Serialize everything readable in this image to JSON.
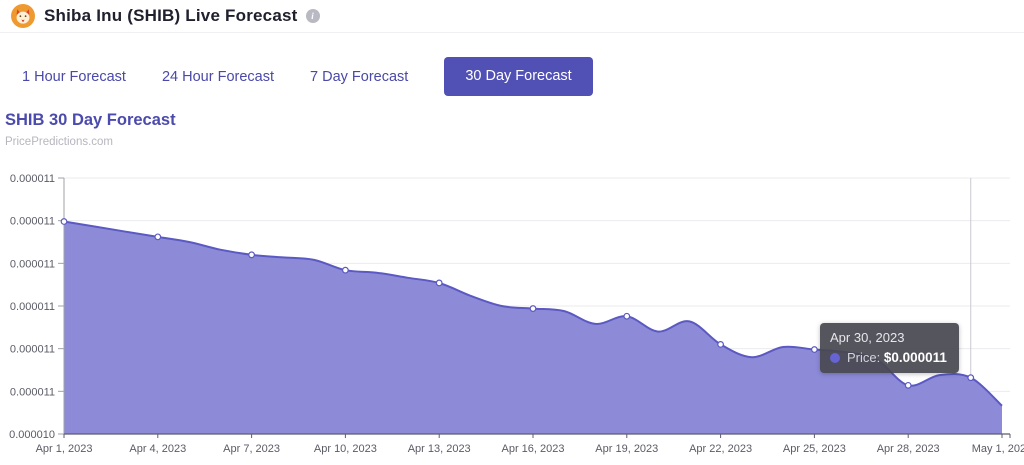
{
  "header": {
    "title": "Shiba Inu (SHIB) Live Forecast",
    "logo_name": "shiba-inu-logo",
    "info_icon": "i"
  },
  "tabs": [
    {
      "label": "1 Hour Forecast",
      "active": false
    },
    {
      "label": "24 Hour Forecast",
      "active": false
    },
    {
      "label": "7 Day Forecast",
      "active": false
    },
    {
      "label": "30 Day Forecast",
      "active": true
    }
  ],
  "section": {
    "heading": "SHIB 30 Day Forecast",
    "watermark": "PricePredictions.com"
  },
  "tooltip": {
    "date": "Apr 30, 2023",
    "price_label": "Price:",
    "price_value": "$0.000011"
  },
  "colors": {
    "accent": "#5150b4",
    "heading": "#4b4aad",
    "area_fill": "#8d8bd8",
    "area_stroke": "#5b59c2",
    "marker_fill": "#ffffff",
    "gridline": "#ebebee",
    "crosshair": "#c9c9d2",
    "y_axis": "#a0a0aa",
    "x_axis": "#5c5c72",
    "axis_text": "#5b5b66",
    "tooltip_bg": "#484852",
    "tooltip_dot": "#6663d2"
  },
  "chart_data": {
    "type": "area",
    "title": "SHIB 30 Day Forecast",
    "xlabel": "",
    "ylabel": "",
    "grid": true,
    "legend_position": "none",
    "ylim": [
      1.04e-05,
      1.14e-05
    ],
    "x": [
      "Apr 1, 2023",
      "Apr 2, 2023",
      "Apr 3, 2023",
      "Apr 4, 2023",
      "Apr 5, 2023",
      "Apr 6, 2023",
      "Apr 7, 2023",
      "Apr 8, 2023",
      "Apr 9, 2023",
      "Apr 10, 2023",
      "Apr 11, 2023",
      "Apr 12, 2023",
      "Apr 13, 2023",
      "Apr 14, 2023",
      "Apr 15, 2023",
      "Apr 16, 2023",
      "Apr 17, 2023",
      "Apr 18, 2023",
      "Apr 19, 2023",
      "Apr 20, 2023",
      "Apr 21, 2023",
      "Apr 22, 2023",
      "Apr 23, 2023",
      "Apr 24, 2023",
      "Apr 25, 2023",
      "Apr 26, 2023",
      "Apr 27, 2023",
      "Apr 28, 2023",
      "Apr 29, 2023",
      "Apr 30, 2023",
      "May 1, 2023"
    ],
    "values": [
      1.123e-05,
      1.121e-05,
      1.119e-05,
      1.117e-05,
      1.115e-05,
      1.112e-05,
      1.11e-05,
      1.109e-05,
      1.108e-05,
      1.104e-05,
      1.103e-05,
      1.101e-05,
      1.099e-05,
      1.094e-05,
      1.09e-05,
      1.089e-05,
      1.088e-05,
      1.083e-05,
      1.086e-05,
      1.08e-05,
      1.084e-05,
      1.075e-05,
      1.07e-05,
      1.074e-05,
      1.073e-05,
      1.072e-05,
      1.069e-05,
      1.059e-05,
      1.063e-05,
      1.062e-05,
      1.051e-05
    ],
    "x_tick_labels": [
      "Apr 1, 2023",
      "Apr 4, 2023",
      "Apr 7, 2023",
      "Apr 10, 2023",
      "Apr 13, 2023",
      "Apr 16, 2023",
      "Apr 19, 2023",
      "Apr 22, 2023",
      "Apr 25, 2023",
      "Apr 28, 2023",
      "May 1, 2023"
    ],
    "x_tick_indices": [
      0,
      3,
      6,
      9,
      12,
      15,
      18,
      21,
      24,
      27,
      30
    ],
    "y_tick_labels_top_to_bottom": [
      "0.000011",
      "0.000011",
      "0.000011",
      "0.000011",
      "0.000011",
      "0.000011",
      "0.000010"
    ],
    "marker_indices": [
      0,
      3,
      6,
      9,
      12,
      15,
      18,
      21,
      24,
      27,
      29
    ],
    "hover_index": 29
  }
}
